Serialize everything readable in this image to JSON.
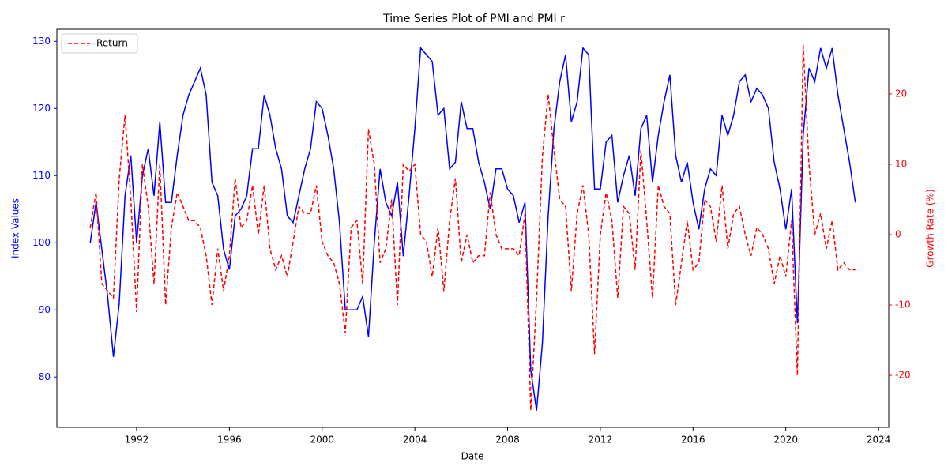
{
  "chart_data": {
    "type": "line",
    "title": "Time Series Plot of PMI and PMI r",
    "x_label": "Date",
    "y_label": "Index Values",
    "y2_label": "Growth Rate (%)",
    "x": [
      1990,
      1990.25,
      1990.5,
      1990.75,
      1991,
      1991.25,
      1991.5,
      1991.75,
      1992,
      1992.25,
      1992.5,
      1992.75,
      1993,
      1993.25,
      1993.5,
      1993.75,
      1994,
      1994.25,
      1994.5,
      1994.75,
      1995,
      1995.25,
      1995.5,
      1995.75,
      1996,
      1996.25,
      1996.5,
      1996.75,
      1997,
      1997.25,
      1997.5,
      1997.75,
      1998,
      1998.25,
      1998.5,
      1998.75,
      1999,
      1999.25,
      1999.5,
      1999.75,
      2000,
      2000.25,
      2000.5,
      2000.75,
      2001,
      2001.25,
      2001.5,
      2001.75,
      2002,
      2002.25,
      2002.5,
      2002.75,
      2003,
      2003.25,
      2003.5,
      2003.75,
      2004,
      2004.25,
      2004.5,
      2004.75,
      2005,
      2005.25,
      2005.5,
      2005.75,
      2006,
      2006.25,
      2006.5,
      2006.75,
      2007,
      2007.25,
      2007.5,
      2007.75,
      2008,
      2008.25,
      2008.5,
      2008.75,
      2009,
      2009.25,
      2009.5,
      2009.75,
      2010,
      2010.25,
      2010.5,
      2010.75,
      2011,
      2011.25,
      2011.5,
      2011.75,
      2012,
      2012.25,
      2012.5,
      2012.75,
      2013,
      2013.25,
      2013.5,
      2013.75,
      2014,
      2014.25,
      2014.5,
      2014.75,
      2015,
      2015.25,
      2015.5,
      2015.75,
      2016,
      2016.25,
      2016.5,
      2016.75,
      2017,
      2017.25,
      2017.5,
      2017.75,
      2018,
      2018.25,
      2018.5,
      2018.75,
      2019,
      2019.25,
      2019.5,
      2019.75,
      2020,
      2020.25,
      2020.5,
      2020.75,
      2021,
      2021.25,
      2021.5,
      2021.75,
      2022,
      2022.25,
      2022.5,
      2022.75,
      2023
    ],
    "series": [
      {
        "color": "#0000ff",
        "dash": false,
        "values": [
          100,
          106,
          99,
          92,
          83,
          91,
          107,
          113,
          100,
          110,
          114,
          107,
          118,
          106,
          106,
          113,
          119,
          122,
          124,
          126,
          122,
          109,
          107,
          99,
          96,
          104,
          105,
          107,
          114,
          114,
          122,
          119,
          114,
          111,
          104,
          103,
          107,
          111,
          114,
          121,
          120,
          116,
          111,
          103,
          90,
          90,
          90,
          92,
          86,
          100,
          111,
          106,
          104,
          109,
          98,
          107,
          117,
          129,
          128,
          127,
          119,
          120,
          111,
          112,
          121,
          117,
          117,
          112,
          109,
          105,
          111,
          111,
          108,
          107,
          103,
          106,
          81,
          75,
          85,
          104,
          117,
          124,
          128,
          118,
          121,
          129,
          128,
          108,
          108,
          115,
          116,
          106,
          110,
          113,
          107,
          117,
          119,
          109,
          116,
          121,
          125,
          113,
          109,
          112,
          106,
          102,
          108,
          111,
          110,
          119,
          116,
          119,
          124,
          125,
          121,
          123,
          122,
          120,
          112,
          108,
          102,
          108,
          88,
          116,
          126,
          124,
          129,
          126,
          129,
          122,
          117,
          112,
          106
        ]
      },
      {
        "name": "Return",
        "color": "#ff0000",
        "dash": true,
        "axis": "y2",
        "values": [
          1,
          6,
          -7,
          -8,
          -9,
          8,
          17,
          5,
          -11,
          10,
          4,
          -7,
          10,
          -10,
          1,
          6,
          4,
          2,
          2,
          1,
          -3,
          -10,
          -2,
          -8,
          -3,
          8,
          1,
          2,
          7,
          0,
          7,
          -2,
          -5,
          -3,
          -6,
          -1,
          4,
          3,
          3,
          7,
          -1,
          -3,
          -4,
          -7,
          -14,
          1,
          2,
          -7,
          15,
          10,
          -4,
          -2,
          5,
          -10,
          10,
          9,
          10,
          0,
          -1,
          -6,
          1,
          -8,
          2,
          8,
          -4,
          0,
          -4,
          -3,
          -3,
          6,
          0,
          -2,
          -2,
          -2,
          -3,
          3,
          -25,
          -9,
          11,
          20,
          12,
          5,
          4,
          -8,
          3,
          7,
          0,
          -17,
          0,
          6,
          2,
          -9,
          4,
          3,
          -5,
          12,
          2,
          -9,
          7,
          4,
          3,
          -10,
          -4,
          2,
          -5,
          -4,
          5,
          4,
          -1,
          7,
          -2,
          3,
          4,
          0,
          -3,
          1,
          0,
          -2,
          -7,
          -3,
          -6,
          2,
          -20,
          27,
          10,
          0,
          3,
          -2,
          2,
          -5,
          -4,
          -5,
          -5
        ]
      }
    ],
    "xlim": [
      1988.56,
      2024.44
    ],
    "xticks": [
      1992,
      1996,
      2000,
      2004,
      2008,
      2012,
      2016,
      2020,
      2024
    ],
    "ylim": [
      72.5,
      131.8
    ],
    "yticks": [
      80,
      90,
      100,
      110,
      120,
      130
    ],
    "y2lim": [
      -27.4,
      29.2
    ],
    "y2ticks": [
      -20,
      -10,
      0,
      10,
      20
    ],
    "legend": "upper left"
  }
}
